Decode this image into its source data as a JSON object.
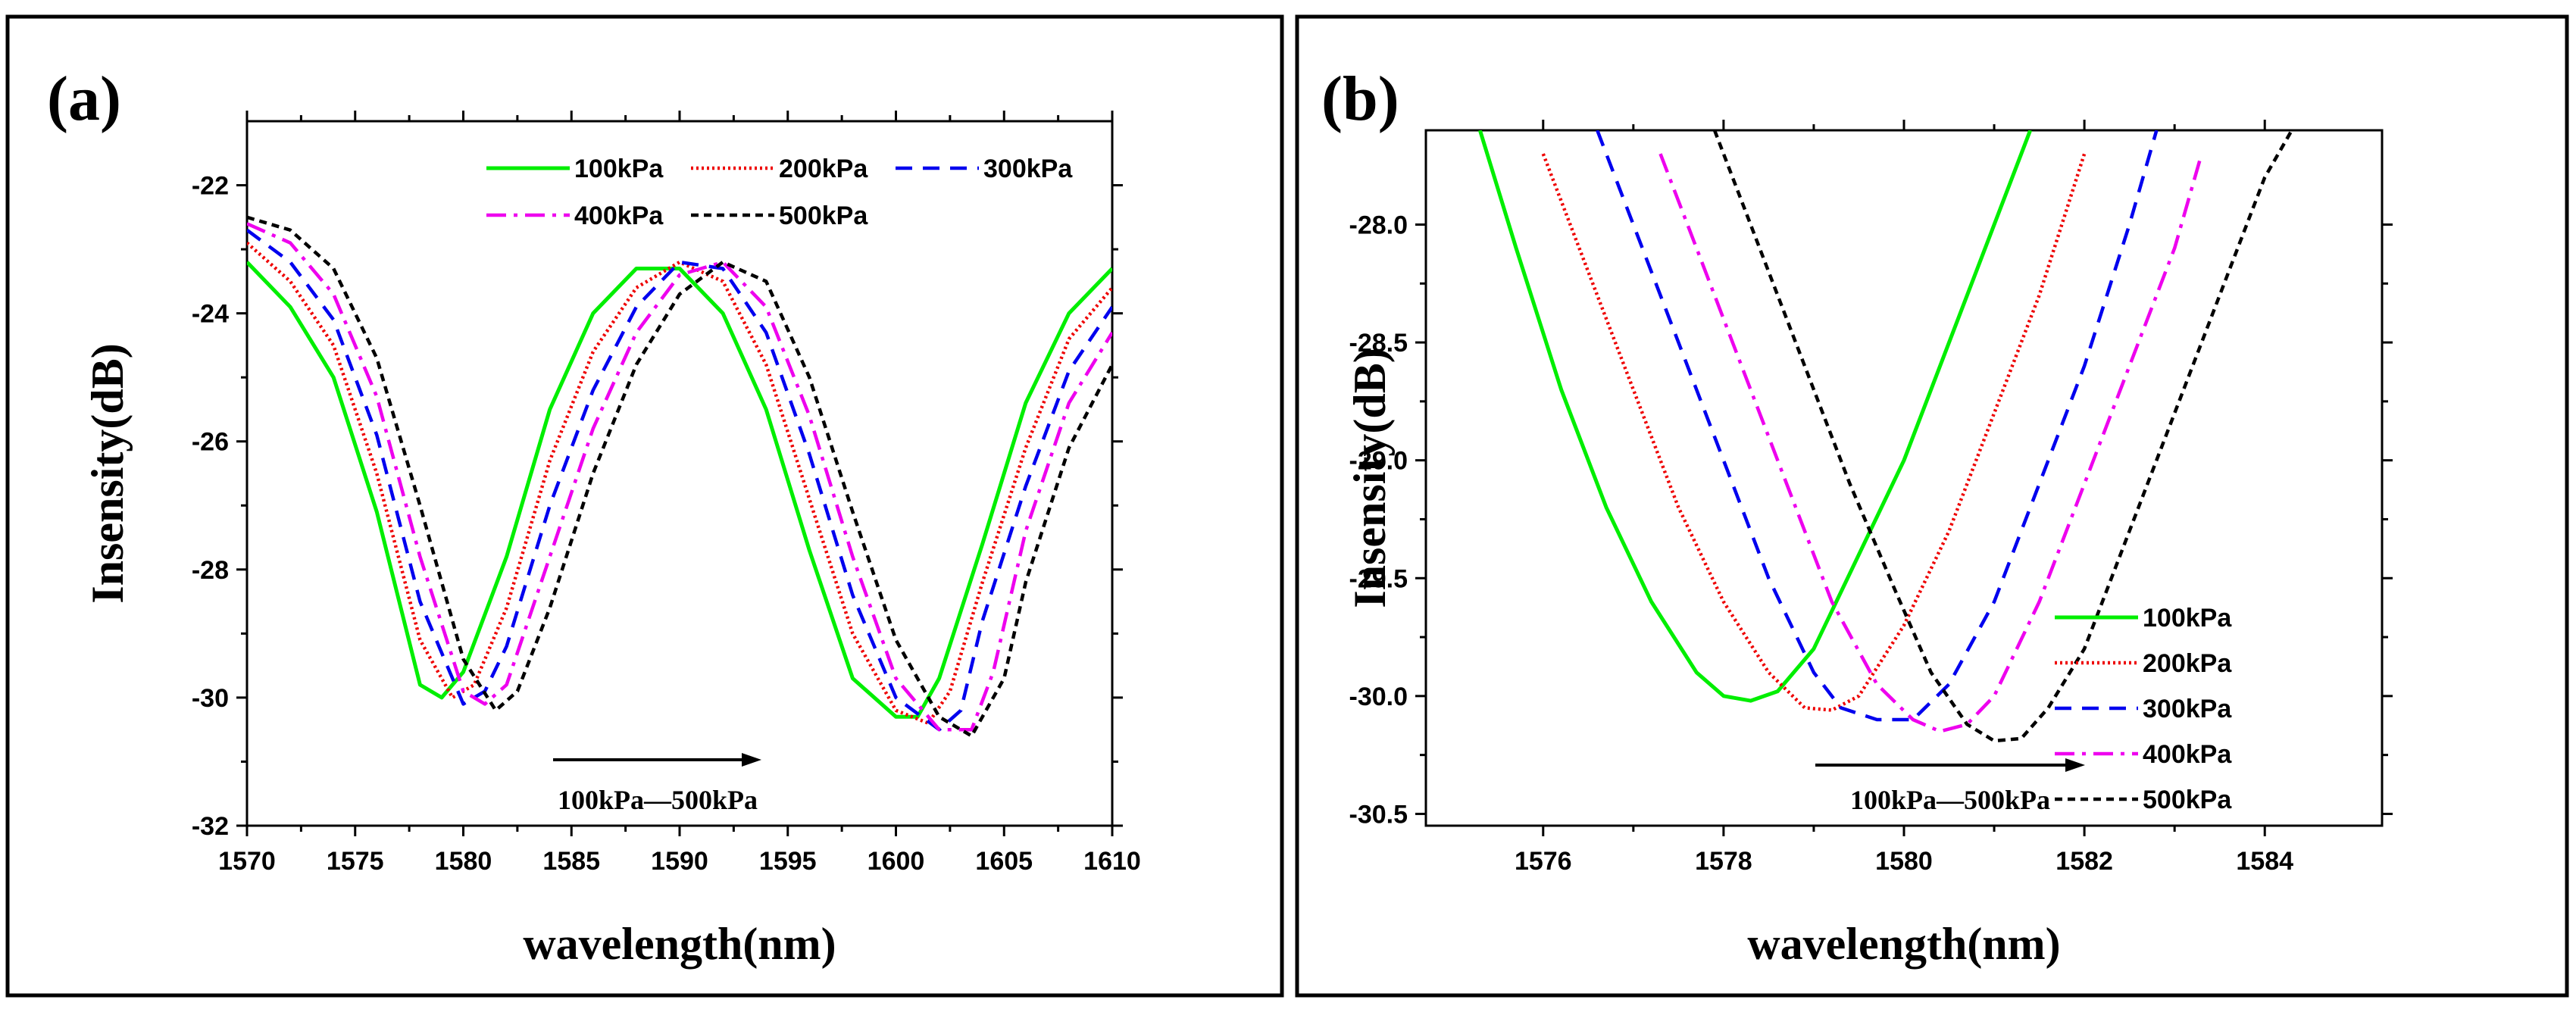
{
  "chart_data": [
    {
      "panel_label": "(a)",
      "type": "line",
      "xlabel": "wavelength(nm)",
      "ylabel": "Insensity(dB)",
      "xlim": [
        1570,
        1610
      ],
      "ylim": [
        -32,
        -21
      ],
      "xticks": [
        1570,
        1575,
        1580,
        1585,
        1590,
        1595,
        1600,
        1605,
        1610
      ],
      "yticks": [
        -32,
        -30,
        -28,
        -26,
        -24,
        -22
      ],
      "annotation": "100kPa—500kPa",
      "legend_position": "top-right",
      "series": [
        {
          "name": "100kPa",
          "color": "#00ee00",
          "style": "solid",
          "x": [
            1570,
            1572,
            1574,
            1576,
            1578,
            1579,
            1580,
            1582,
            1584,
            1586,
            1588,
            1590,
            1592,
            1594,
            1596,
            1598,
            1600,
            1601,
            1602,
            1604,
            1606,
            1608,
            1610
          ],
          "y": [
            -23.2,
            -23.9,
            -25.0,
            -27.1,
            -29.8,
            -30.0,
            -29.6,
            -27.8,
            -25.5,
            -24.0,
            -23.3,
            -23.3,
            -24.0,
            -25.5,
            -27.7,
            -29.7,
            -30.3,
            -30.3,
            -29.7,
            -27.6,
            -25.4,
            -24.0,
            -23.3
          ]
        },
        {
          "name": "200kPa",
          "color": "#ee0000",
          "style": "dotted",
          "x": [
            1570,
            1572,
            1574,
            1576,
            1578,
            1579.5,
            1580.5,
            1582,
            1584,
            1586,
            1588,
            1590,
            1592,
            1594,
            1596,
            1598,
            1600,
            1601.5,
            1602.5,
            1604,
            1606,
            1608,
            1610
          ],
          "y": [
            -22.9,
            -23.5,
            -24.5,
            -26.5,
            -29.1,
            -30.0,
            -29.8,
            -28.6,
            -26.3,
            -24.6,
            -23.6,
            -23.2,
            -23.5,
            -24.8,
            -26.9,
            -29.0,
            -30.2,
            -30.4,
            -29.9,
            -28.2,
            -26.1,
            -24.4,
            -23.6
          ]
        },
        {
          "name": "300kPa",
          "color": "#0000ee",
          "style": "dashed",
          "x": [
            1570,
            1572,
            1574,
            1576,
            1578,
            1580,
            1581,
            1582,
            1584,
            1586,
            1588,
            1590,
            1592,
            1594,
            1596,
            1598,
            1600,
            1602,
            1603,
            1604,
            1606,
            1608,
            1610
          ],
          "y": [
            -22.7,
            -23.2,
            -24.1,
            -25.9,
            -28.5,
            -30.1,
            -29.9,
            -29.2,
            -27.0,
            -25.2,
            -23.9,
            -23.2,
            -23.3,
            -24.3,
            -26.2,
            -28.4,
            -30.0,
            -30.5,
            -30.2,
            -28.8,
            -26.7,
            -24.9,
            -23.9
          ]
        },
        {
          "name": "400kPa",
          "color": "#ee00ee",
          "style": "dashdot",
          "x": [
            1570,
            1572,
            1574,
            1576,
            1578,
            1580,
            1581,
            1582,
            1584,
            1586,
            1588,
            1590,
            1592,
            1594,
            1596,
            1598,
            1600,
            1602,
            1603.5,
            1604.5,
            1606,
            1608,
            1610
          ],
          "y": [
            -22.6,
            -22.9,
            -23.7,
            -25.3,
            -27.8,
            -29.9,
            -30.1,
            -29.8,
            -27.8,
            -25.8,
            -24.3,
            -23.4,
            -23.2,
            -23.9,
            -25.6,
            -27.8,
            -29.7,
            -30.5,
            -30.5,
            -29.6,
            -27.4,
            -25.4,
            -24.3
          ]
        },
        {
          "name": "500kPa",
          "color": "#000000",
          "style": "shortdash",
          "x": [
            1570,
            1572,
            1574,
            1576,
            1578,
            1580,
            1581.5,
            1582.5,
            1584,
            1586,
            1588,
            1590,
            1592,
            1594,
            1596,
            1598,
            1600,
            1602,
            1603.5,
            1605,
            1606,
            1608,
            1610
          ],
          "y": [
            -22.5,
            -22.7,
            -23.3,
            -24.7,
            -27.0,
            -29.4,
            -30.2,
            -29.9,
            -28.6,
            -26.5,
            -24.8,
            -23.7,
            -23.2,
            -23.5,
            -25.0,
            -27.1,
            -29.1,
            -30.3,
            -30.6,
            -29.7,
            -28.2,
            -26.1,
            -24.8
          ]
        }
      ]
    },
    {
      "panel_label": "(b)",
      "type": "line",
      "xlabel": "wavelength(nm)",
      "ylabel": "Insensity(dB)",
      "xlim": [
        1574.7,
        1585.3
      ],
      "ylim": [
        -30.55,
        -27.6
      ],
      "xticks": [
        1576,
        1578,
        1580,
        1582,
        1584
      ],
      "yticks": [
        -30.5,
        -30.0,
        -29.5,
        -29.0,
        -28.5,
        -28.0
      ],
      "ytick_labels": [
        "-30.5",
        "-30.0",
        "-29.5",
        "-29.0",
        "-28.5",
        "-28.0"
      ],
      "annotation": "100kPa—500kPa",
      "legend_position": "bottom-right",
      "series": [
        {
          "name": "100kPa",
          "color": "#00ee00",
          "style": "solid",
          "x": [
            1575.3,
            1575.7,
            1576.2,
            1576.7,
            1577.2,
            1577.7,
            1578.0,
            1578.3,
            1578.6,
            1579.0,
            1579.5,
            1580.0,
            1580.5,
            1581.0,
            1581.4
          ],
          "y": [
            -27.6,
            -28.1,
            -28.7,
            -29.2,
            -29.6,
            -29.9,
            -30.0,
            -30.02,
            -29.98,
            -29.8,
            -29.4,
            -29.0,
            -28.5,
            -28.0,
            -27.6
          ]
        },
        {
          "name": "200kPa",
          "color": "#ee0000",
          "style": "dotted",
          "x": [
            1576.0,
            1576.5,
            1577.0,
            1577.5,
            1578.0,
            1578.5,
            1578.9,
            1579.2,
            1579.5,
            1580.0,
            1580.5,
            1581.0,
            1581.5,
            1582.0
          ],
          "y": [
            -27.7,
            -28.2,
            -28.7,
            -29.2,
            -29.6,
            -29.9,
            -30.05,
            -30.06,
            -30.0,
            -29.7,
            -29.3,
            -28.8,
            -28.3,
            -27.7
          ]
        },
        {
          "name": "300kPa",
          "color": "#0000ee",
          "style": "dashed",
          "x": [
            1576.6,
            1577.0,
            1577.5,
            1578.0,
            1578.5,
            1579.0,
            1579.3,
            1579.7,
            1580.1,
            1580.5,
            1581.0,
            1581.5,
            1582.0,
            1582.5,
            1582.8
          ],
          "y": [
            -27.6,
            -28.0,
            -28.5,
            -29.0,
            -29.5,
            -29.9,
            -30.05,
            -30.1,
            -30.1,
            -29.95,
            -29.6,
            -29.1,
            -28.6,
            -28.0,
            -27.6
          ]
        },
        {
          "name": "400kPa",
          "color": "#ee00ee",
          "style": "dashdot",
          "x": [
            1577.3,
            1577.7,
            1578.2,
            1578.7,
            1579.2,
            1579.7,
            1580.1,
            1580.4,
            1580.7,
            1581.0,
            1581.5,
            1582.0,
            1582.5,
            1583.0,
            1583.3
          ],
          "y": [
            -27.7,
            -28.1,
            -28.6,
            -29.1,
            -29.6,
            -29.95,
            -30.1,
            -30.15,
            -30.12,
            -30.0,
            -29.6,
            -29.1,
            -28.6,
            -28.1,
            -27.7
          ]
        },
        {
          "name": "500kPa",
          "color": "#000000",
          "style": "shortdash",
          "x": [
            1577.9,
            1578.4,
            1578.9,
            1579.4,
            1579.9,
            1580.3,
            1580.7,
            1581.0,
            1581.3,
            1581.6,
            1582.0,
            1582.5,
            1583.0,
            1583.5,
            1584.0,
            1584.3
          ],
          "y": [
            -27.6,
            -28.1,
            -28.6,
            -29.1,
            -29.55,
            -29.9,
            -30.12,
            -30.19,
            -30.18,
            -30.05,
            -29.8,
            -29.3,
            -28.8,
            -28.3,
            -27.8,
            -27.6
          ]
        }
      ]
    }
  ]
}
